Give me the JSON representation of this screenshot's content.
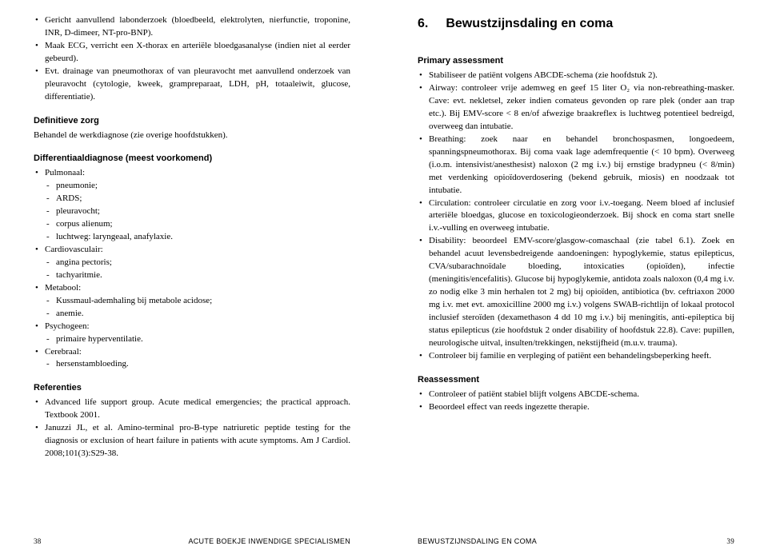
{
  "left": {
    "top_bullets": [
      "Gericht aanvullend labonderzoek (bloedbeeld, elektrolyten, nierfunctie, troponine, INR, D-dimeer, NT-pro-BNP).",
      "Maak ECG, verricht een X-thorax en arteriële bloedgasanalyse (indien niet al eerder gebeurd).",
      "Evt. drainage van pneumothorax of van pleuravocht met aanvullend onderzoek van pleuravocht (cytologie, kweek, grampreparaat, LDH, pH, totaaleiwit, glucose, differentiatie)."
    ],
    "definitieve_heading": "Definitieve zorg",
    "definitieve_text": "Behandel de werkdiagnose (zie overige hoofdstukken).",
    "diff_heading": "Differentiaaldiagnose (meest voorkomend)",
    "diff": [
      {
        "label": "Pulmonaal:",
        "items": [
          "pneumonie;",
          "ARDS;",
          "pleuravocht;",
          "corpus alienum;",
          "luchtweg: laryngeaal, anafylaxie."
        ]
      },
      {
        "label": "Cardiovasculair:",
        "items": [
          "angina pectoris;",
          "tachyaritmie."
        ]
      },
      {
        "label": "Metabool:",
        "items": [
          "Kussmaul-ademhaling bij metabole acidose;",
          "anemie."
        ]
      },
      {
        "label": "Psychogeen:",
        "items": [
          "primaire hyperventilatie."
        ]
      },
      {
        "label": "Cerebraal:",
        "items": [
          "hersenstambloeding."
        ]
      }
    ],
    "refs_heading": "Referenties",
    "refs": [
      "Advanced life support group. Acute medical emergencies; the practical approach. Textbook 2001.",
      "Januzzi JL, et al. Amino-terminal pro-B-type natriuretic peptide testing for the diagnosis or exclusion of heart failure in patients with acute symptoms. Am J Cardiol. 2008;101(3):S29-38."
    ],
    "footer_page": "38",
    "footer_running": "ACUTE BOEKJE INWENDIGE SPECIALISMEN"
  },
  "right": {
    "chapter_num": "6.",
    "chapter_title": "Bewustzijnsdaling en coma",
    "primary_heading": "Primary assessment",
    "primary_bullets": [
      "Stabiliseer de patiënt volgens ABCDE-schema (zie hoofdstuk 2).",
      "Airway: controleer vrije ademweg en geef 15 liter O₂ via non-rebreathing-masker. Cave: evt. nekletsel, zeker indien comateus gevonden op rare plek (onder aan trap etc.). Bij EMV-score < 8 en/of afwezige braakreflex is luchtweg potentieel bedreigd, overweeg dan intubatie.",
      "Breathing: zoek naar en behandel bronchospasmen, longoedeem, spanningspneumothorax. Bij coma vaak lage ademfrequentie (< 10 bpm). Overweeg (i.o.m. intensivist/anesthesist) naloxon (2 mg i.v.) bij ernstige bradypneu (< 8/min) met verdenking opioïdoverdosering (bekend gebruik, miosis) en noodzaak tot intubatie.",
      "Circulation: controleer circulatie en zorg voor i.v.-toegang. Neem bloed af inclusief arteriële bloedgas, glucose en toxicologieonderzoek. Bij shock en coma start snelle i.v.-vulling en overweeg intubatie.",
      "Disability: beoordeel EMV-score/glasgow-comaschaal (zie tabel 6.1). Zoek en behandel acuut levensbedreigende aandoeningen: hypoglykemie, status epilepticus, CVA/subarachnoïdale bloeding, intoxicaties (opioïden), infectie (meningitis/encefalitis). Glucose bij hypoglykemie, antidota zoals naloxon (0,4 mg i.v. zo nodig elke 3 min herhalen tot 2 mg) bij opioïden, antibiotica (bv. ceftriaxon 2000 mg i.v. met evt. amoxicilline 2000 mg i.v.) volgens SWAB-richtlijn of lokaal protocol inclusief steroïden (dexamethason 4 dd 10 mg i.v.) bij meningitis, anti-epileptica bij status epilepticus (zie hoofdstuk 2 onder disability of hoofdstuk 22.8). Cave: pupillen, neurologische uitval, insulten/trekkingen, nekstijfheid (m.u.v. trauma).",
      "Controleer bij familie en verpleging of patiënt een behandelingsbeperking heeft."
    ],
    "reassess_heading": "Reassessment",
    "reassess_bullets": [
      "Controleer of patiënt stabiel blijft volgens ABCDE-schema.",
      "Beoordeel effect van reeds ingezette therapie."
    ],
    "footer_running": "BEWUSTZIJNSDALING EN COMA",
    "footer_page": "39"
  }
}
